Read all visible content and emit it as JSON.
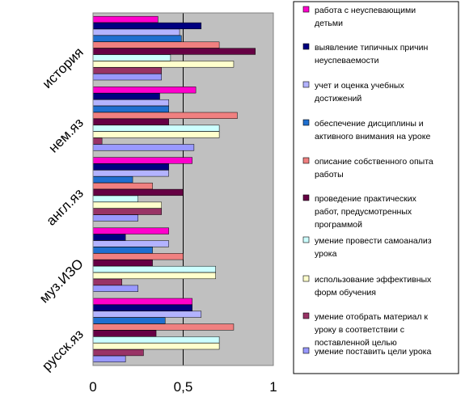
{
  "chart_data": {
    "type": "bar",
    "orientation": "horizontal",
    "categories": [
      "история",
      "нем.яз",
      "англ.яз",
      "муз.ИЗО",
      "русск.яз"
    ],
    "xlim": [
      0,
      1
    ],
    "xticks": [
      0,
      0.5,
      1
    ],
    "xtick_labels": [
      "0",
      "0,5",
      "1"
    ],
    "grid": "vertical major gridlines",
    "legend_position": "right",
    "series": [
      {
        "name": "работа с неуспевающими детьми",
        "color": "#ff00cc",
        "values": [
          0.36,
          0.57,
          0.55,
          0.42,
          0.55
        ]
      },
      {
        "name": "выявление типичных причин неуспеваемости",
        "color": "#000080",
        "values": [
          0.6,
          0.37,
          0.42,
          0.18,
          0.55
        ]
      },
      {
        "name": "учет и оценка учебных достижений",
        "color": "#b3b3ff",
        "values": [
          0.48,
          0.42,
          0.42,
          0.42,
          0.6
        ]
      },
      {
        "name": "обеспечение дисциплины и активного внимания на уроке",
        "color": "#1f6fcf",
        "values": [
          0.49,
          0.42,
          0.22,
          0.33,
          0.4
        ]
      },
      {
        "name": "описание собственного опыта работы",
        "color": "#f08080",
        "values": [
          0.7,
          0.8,
          0.33,
          0.5,
          0.78
        ]
      },
      {
        "name": "проведение практических работ, предусмотренных программой",
        "color": "#660044",
        "values": [
          0.9,
          0.42,
          0.5,
          0.33,
          0.35
        ]
      },
      {
        "name": "умение провести самоанализ урока",
        "color": "#ccffff",
        "values": [
          0.43,
          0.7,
          0.25,
          0.68,
          0.7
        ]
      },
      {
        "name": "использование эффективных форм обучения",
        "color": "#ffffcc",
        "values": [
          0.78,
          0.7,
          0.38,
          0.68,
          0.7
        ]
      },
      {
        "name": "умение отобрать материал к уроку в соответствии с поставленной целью",
        "color": "#993366",
        "values": [
          0.38,
          0.05,
          0.38,
          0.16,
          0.28
        ]
      },
      {
        "name": "умение поставить цели урока",
        "color": "#9999ff",
        "values": [
          0.38,
          0.56,
          0.25,
          0.25,
          0.18
        ]
      }
    ]
  }
}
